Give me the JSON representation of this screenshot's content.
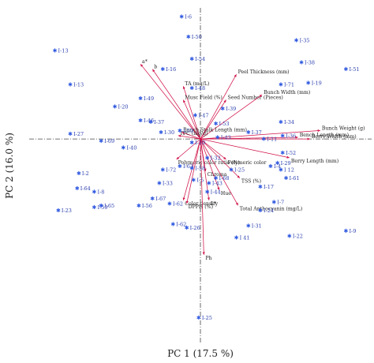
{
  "chart_data": {
    "type": "scatter",
    "xlabel": "PC 1  (17.5 %)",
    "ylabel": "PC 2  (16.0 %)",
    "xlim": [
      -1.0,
      1.0
    ],
    "ylim": [
      -1.2,
      0.77
    ],
    "grid": false,
    "colors": {
      "points": "#2d57e0",
      "labels": "#2b3fae",
      "vectors": "#d1144a",
      "axes": "#444444",
      "text": "#1a1a1a"
    },
    "scores": [
      {
        "label": "I-6",
        "x": -0.11,
        "y": 0.72
      },
      {
        "label": "I-50",
        "x": -0.07,
        "y": 0.6
      },
      {
        "label": "I-35",
        "x": 0.56,
        "y": 0.58
      },
      {
        "label": "I-13",
        "x": -0.85,
        "y": 0.52
      },
      {
        "label": "I-54",
        "x": -0.05,
        "y": 0.47
      },
      {
        "label": "I-38",
        "x": 0.59,
        "y": 0.45
      },
      {
        "label": "I-51",
        "x": 0.85,
        "y": 0.41
      },
      {
        "label": "I-16",
        "x": -0.22,
        "y": 0.41
      },
      {
        "label": "I-13",
        "x": -0.76,
        "y": 0.32
      },
      {
        "label": "I-71",
        "x": 0.47,
        "y": 0.32
      },
      {
        "label": "I-19",
        "x": 0.63,
        "y": 0.33
      },
      {
        "label": "I-48",
        "x": -0.05,
        "y": 0.3
      },
      {
        "label": "I-49",
        "x": -0.35,
        "y": 0.24
      },
      {
        "label": "I-20",
        "x": -0.5,
        "y": 0.19
      },
      {
        "label": "I-39",
        "x": 0.13,
        "y": 0.18
      },
      {
        "label": "I-46",
        "x": -0.35,
        "y": 0.11
      },
      {
        "label": "I-47",
        "x": -0.03,
        "y": 0.14
      },
      {
        "label": "I-37",
        "x": -0.29,
        "y": 0.1
      },
      {
        "label": "I-53",
        "x": 0.09,
        "y": 0.09
      },
      {
        "label": "I-34",
        "x": 0.47,
        "y": 0.1
      },
      {
        "label": "I-27",
        "x": -0.76,
        "y": 0.03
      },
      {
        "label": "I-30",
        "x": -0.23,
        "y": 0.04
      },
      {
        "label": "I-59",
        "x": -0.12,
        "y": 0.05
      },
      {
        "label": "I-36",
        "x": 0.48,
        "y": 0.02
      },
      {
        "label": "I-37",
        "x": 0.28,
        "y": 0.04
      },
      {
        "label": "I-43",
        "x": 0.1,
        "y": 0.01
      },
      {
        "label": "I-69",
        "x": -0.58,
        "y": -0.01
      },
      {
        "label": "I-10",
        "x": -0.05,
        "y": -0.02
      },
      {
        "label": "I-11",
        "x": 0.37,
        "y": 0.0
      },
      {
        "label": "I-40",
        "x": -0.45,
        "y": -0.05
      },
      {
        "label": "I-52",
        "x": 0.48,
        "y": -0.08
      },
      {
        "label": "I-32",
        "x": 0.04,
        "y": -0.11
      },
      {
        "label": "I-4",
        "x": 0.41,
        "y": -0.16
      },
      {
        "label": "I-29",
        "x": 0.45,
        "y": -0.14
      },
      {
        "label": "I 12",
        "x": 0.47,
        "y": -0.18
      },
      {
        "label": "I-63",
        "x": -0.12,
        "y": -0.16
      },
      {
        "label": "I-58",
        "x": -0.05,
        "y": -0.17
      },
      {
        "label": "I-68",
        "x": 0.09,
        "y": -0.23
      },
      {
        "label": "I-61",
        "x": 0.5,
        "y": -0.23
      },
      {
        "label": "I-2",
        "x": -0.71,
        "y": -0.2
      },
      {
        "label": "I-25",
        "x": 0.18,
        "y": -0.18
      },
      {
        "label": "I-72",
        "x": -0.22,
        "y": -0.18
      },
      {
        "label": "I-33",
        "x": -0.24,
        "y": -0.26
      },
      {
        "label": "I-5",
        "x": -0.04,
        "y": -0.24
      },
      {
        "label": "I-43",
        "x": 0.05,
        "y": -0.26
      },
      {
        "label": "I-17",
        "x": 0.35,
        "y": -0.28
      },
      {
        "label": "I-64",
        "x": -0.72,
        "y": -0.29
      },
      {
        "label": "I-8",
        "x": -0.62,
        "y": -0.31
      },
      {
        "label": "I-67",
        "x": -0.28,
        "y": -0.35
      },
      {
        "label": "I-44",
        "x": 0.04,
        "y": -0.31
      },
      {
        "label": "I-56",
        "x": -0.36,
        "y": -0.39
      },
      {
        "label": "I-7",
        "x": 0.43,
        "y": -0.37
      },
      {
        "label": "I-23",
        "x": -0.83,
        "y": -0.42
      },
      {
        "label": "I-59",
        "x": -0.62,
        "y": -0.4
      },
      {
        "label": "I-65",
        "x": -0.58,
        "y": -0.39
      },
      {
        "label": "I-62",
        "x": -0.18,
        "y": -0.38
      },
      {
        "label": "I-24",
        "x": 0.35,
        "y": -0.42
      },
      {
        "label": "I-62",
        "x": -0.16,
        "y": -0.5
      },
      {
        "label": "I-26",
        "x": -0.08,
        "y": -0.52
      },
      {
        "label": "I-31",
        "x": 0.28,
        "y": -0.51
      },
      {
        "label": "I-9",
        "x": 0.85,
        "y": -0.54
      },
      {
        "label": "I-22",
        "x": 0.52,
        "y": -0.57
      },
      {
        "label": "I 41",
        "x": 0.21,
        "y": -0.58
      },
      {
        "label": "I-25",
        "x": -0.01,
        "y": -1.05
      }
    ],
    "loadings": [
      {
        "label": "a*",
        "x": -0.35,
        "y": 0.44
      },
      {
        "label": "b",
        "x": -0.28,
        "y": 0.41
      },
      {
        "label": "Peel Thickness (mm)",
        "x": 0.21,
        "y": 0.38
      },
      {
        "label": "TA (mg/L)",
        "x": -0.1,
        "y": 0.31
      },
      {
        "label": "Musc Field (%)",
        "x": -0.1,
        "y": 0.23
      },
      {
        "label": "Seed Number (Pieces)",
        "x": 0.15,
        "y": 0.23
      },
      {
        "label": "Bunch Width (mm)",
        "x": 0.36,
        "y": 0.26
      },
      {
        "label": "Bunch Weight (g)",
        "x": 0.7,
        "y": 0.05
      },
      {
        "label": "Bench Length (mm)",
        "x": 0.57,
        "y": 0.01
      },
      {
        "label": "Berry Width (mm)",
        "x": 0.64,
        "y": 0.0
      },
      {
        "label": "Bunch Stalk Length (mm)",
        "x": -0.11,
        "y": 0.04
      },
      {
        "label": "TPC (mg/g)",
        "x": -0.13,
        "y": 0.02
      },
      {
        "label": "Berry Length (mm)",
        "x": 0.52,
        "y": -0.11
      },
      {
        "label": "Polymeric color",
        "x": 0.15,
        "y": -0.12
      },
      {
        "label": "Polymeric color ratio (%)",
        "x": -0.14,
        "y": -0.12
      },
      {
        "label": "Chroma",
        "x": 0.03,
        "y": -0.19
      },
      {
        "label": "TSS (%)",
        "x": 0.23,
        "y": -0.23
      },
      {
        "label": "Hue",
        "x": 0.11,
        "y": -0.3
      },
      {
        "label": "Color density",
        "x": -0.1,
        "y": -0.36
      },
      {
        "label": "L*",
        "x": 0.05,
        "y": -0.36
      },
      {
        "label": "DPPH (%)",
        "x": -0.08,
        "y": -0.38
      },
      {
        "label": "Total Anthocyanin (mg/L)",
        "x": 0.22,
        "y": -0.39
      },
      {
        "label": "Ph",
        "x": 0.02,
        "y": -0.68
      }
    ]
  }
}
